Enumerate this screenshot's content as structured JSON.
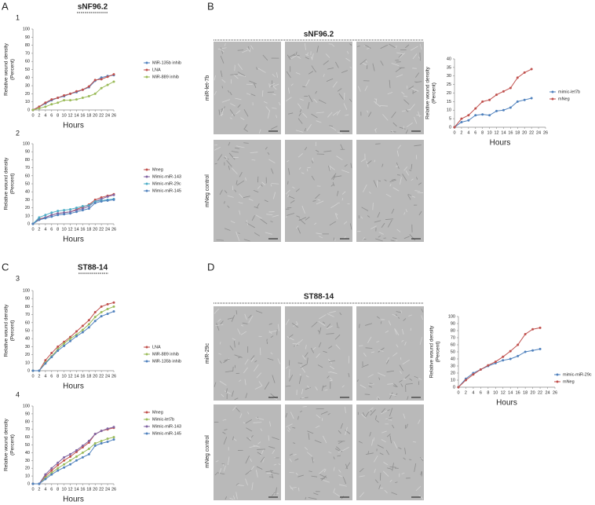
{
  "panels": [
    {
      "letter": "A",
      "title": "sNF96.2",
      "subpanels": [
        "1",
        "2"
      ]
    },
    {
      "letter": "B",
      "title": "sNF96.2",
      "rows": [
        "miR-let-7b",
        "mNeg control"
      ]
    },
    {
      "letter": "C",
      "title": "ST88-14",
      "subpanels": [
        "3",
        "4"
      ]
    },
    {
      "letter": "D",
      "title": "ST88-14",
      "rows": [
        "miR-29c",
        "mNeg control"
      ]
    }
  ],
  "chart_data": [
    {
      "type": "line",
      "ylabel": "Relative wound density",
      "ylabel_unit": "(Percent)",
      "xlabel": "Hours",
      "x": [
        0,
        2,
        4,
        6,
        8,
        10,
        12,
        14,
        16,
        18,
        20,
        22,
        24,
        26
      ],
      "xlim": [
        0,
        26
      ],
      "xticks": [
        0,
        2,
        4,
        6,
        8,
        10,
        12,
        14,
        16,
        18,
        20,
        22,
        24,
        26
      ],
      "ylim": [
        0,
        100
      ],
      "yticks": [
        0,
        10,
        20,
        30,
        40,
        50,
        60,
        70,
        80,
        90,
        100
      ],
      "series": [
        {
          "name": "MiR-135b inhib",
          "color": "#4f81bd",
          "values": [
            0,
            4,
            8,
            12,
            15,
            17,
            20,
            22,
            25,
            28,
            36,
            40,
            42,
            43
          ]
        },
        {
          "name": "LNA",
          "color": "#c0504d",
          "values": [
            0,
            4,
            9,
            13,
            15,
            18,
            20,
            23,
            25,
            29,
            37,
            38,
            41,
            44
          ]
        },
        {
          "name": "MiR-889 inhib",
          "color": "#9bbb59",
          "values": [
            0,
            2,
            4,
            7,
            9,
            12,
            12,
            13,
            15,
            17,
            20,
            27,
            31,
            35
          ]
        }
      ]
    },
    {
      "type": "line",
      "ylabel": "Relative wound density",
      "ylabel_unit": "(Percent)",
      "xlabel": "Hours",
      "x": [
        0,
        2,
        4,
        6,
        8,
        10,
        12,
        14,
        16,
        18,
        20,
        22,
        24,
        26
      ],
      "xlim": [
        0,
        26
      ],
      "xticks": [
        0,
        2,
        4,
        6,
        8,
        10,
        12,
        14,
        16,
        18,
        20,
        22,
        24,
        26
      ],
      "ylim": [
        0,
        100
      ],
      "yticks": [
        0,
        10,
        20,
        30,
        40,
        50,
        60,
        70,
        80,
        90,
        100
      ],
      "series": [
        {
          "name": "Mneg",
          "color": "#c0504d",
          "values": [
            0,
            6,
            8,
            11,
            13,
            14,
            15,
            18,
            21,
            24,
            30,
            33,
            35,
            37
          ]
        },
        {
          "name": "Mimic-miR-143",
          "color": "#8064a2",
          "values": [
            0,
            5,
            8,
            11,
            13,
            14,
            15,
            17,
            19,
            22,
            28,
            31,
            34,
            36
          ]
        },
        {
          "name": "Mimic-miR-29c",
          "color": "#4bacc6",
          "values": [
            0,
            8,
            11,
            14,
            16,
            17,
            18,
            20,
            22,
            23,
            28,
            29,
            30,
            31
          ]
        },
        {
          "name": "Mimic-miR-145",
          "color": "#4f81bd",
          "values": [
            0,
            5,
            7,
            9,
            11,
            12,
            13,
            15,
            17,
            19,
            26,
            28,
            29,
            30
          ]
        }
      ]
    },
    {
      "type": "line",
      "ylabel": "Relative wound density",
      "ylabel_unit": "(Percent)",
      "xlabel": "Hours",
      "x": [
        0,
        2,
        4,
        6,
        8,
        10,
        12,
        14,
        16,
        18,
        20,
        22
      ],
      "xlim": [
        0,
        26
      ],
      "xticks": [
        0,
        2,
        4,
        6,
        8,
        10,
        12,
        14,
        16,
        18,
        20,
        22,
        24,
        26
      ],
      "ylim": [
        0,
        40
      ],
      "yticks": [
        0,
        5,
        10,
        15,
        20,
        25,
        30,
        35,
        40
      ],
      "series": [
        {
          "name": "mimic-let7b",
          "color": "#4f81bd",
          "values": [
            0,
            3,
            4,
            7,
            7.5,
            7,
            9.5,
            10,
            11.5,
            15,
            16,
            17
          ]
        },
        {
          "name": "mNeg",
          "color": "#c0504d",
          "values": [
            0,
            5,
            7,
            11,
            15,
            16,
            19,
            21,
            23,
            29,
            32,
            34
          ]
        }
      ]
    },
    {
      "type": "line",
      "ylabel": "Relative wound density",
      "ylabel_unit": "(Percent)",
      "xlabel": "Hours",
      "x": [
        0,
        2,
        4,
        6,
        8,
        10,
        12,
        14,
        16,
        18,
        20,
        22,
        24,
        26
      ],
      "xlim": [
        0,
        26
      ],
      "xticks": [
        0,
        2,
        4,
        6,
        8,
        10,
        12,
        14,
        16,
        18,
        20,
        22,
        24,
        26
      ],
      "ylim": [
        0,
        100
      ],
      "yticks": [
        0,
        10,
        20,
        30,
        40,
        50,
        60,
        70,
        80,
        90,
        100
      ],
      "series": [
        {
          "name": "LNA",
          "color": "#c0504d",
          "values": [
            0,
            0,
            13,
            22,
            30,
            36,
            42,
            49,
            56,
            63,
            73,
            80,
            83,
            85
          ]
        },
        {
          "name": "MiR-889 inhib",
          "color": "#9bbb59",
          "values": [
            0,
            0,
            10,
            18,
            27,
            34,
            40,
            45,
            51,
            58,
            67,
            73,
            77,
            80
          ]
        },
        {
          "name": "MiR-135b inhib",
          "color": "#4f81bd",
          "values": [
            0,
            0,
            9,
            17,
            25,
            31,
            37,
            43,
            48,
            54,
            62,
            68,
            71,
            74
          ]
        }
      ]
    },
    {
      "type": "line",
      "ylabel": "Relative wound density",
      "ylabel_unit": "(Percent)",
      "xlabel": "Hours",
      "x": [
        0,
        2,
        4,
        6,
        8,
        10,
        12,
        14,
        16,
        18,
        20,
        22,
        24,
        26
      ],
      "xlim": [
        0,
        26
      ],
      "xticks": [
        0,
        2,
        4,
        6,
        8,
        10,
        12,
        14,
        16,
        18,
        20,
        22,
        24,
        26
      ],
      "ylim": [
        0,
        100
      ],
      "yticks": [
        0,
        10,
        20,
        30,
        40,
        50,
        60,
        70,
        80,
        90,
        100
      ],
      "series": [
        {
          "name": "Mneg",
          "color": "#c0504d",
          "values": [
            0,
            0,
            10,
            17,
            24,
            30,
            35,
            41,
            47,
            53,
            64,
            68,
            70,
            72
          ]
        },
        {
          "name": "Mimic-let7b",
          "color": "#9bbb59",
          "values": [
            0,
            0,
            8,
            14,
            20,
            25,
            30,
            35,
            40,
            45,
            52,
            55,
            58,
            60
          ]
        },
        {
          "name": "Mimic-miR-143",
          "color": "#8064a2",
          "values": [
            0,
            0,
            12,
            20,
            27,
            34,
            38,
            43,
            49,
            55,
            64,
            68,
            71,
            73
          ]
        },
        {
          "name": "Mimic-miR-145",
          "color": "#4f81bd",
          "values": [
            0,
            0,
            6,
            12,
            17,
            21,
            25,
            30,
            34,
            38,
            49,
            52,
            54,
            57
          ]
        }
      ]
    },
    {
      "type": "line",
      "ylabel": "Relative wound density",
      "ylabel_unit": "(Percent)",
      "xlabel": "Hours",
      "x": [
        0,
        2,
        4,
        6,
        8,
        10,
        12,
        14,
        16,
        18,
        20,
        22
      ],
      "xlim": [
        0,
        26
      ],
      "xticks": [
        0,
        2,
        4,
        6,
        8,
        10,
        12,
        14,
        16,
        18,
        20,
        22,
        24,
        26
      ],
      "ylim": [
        0,
        100
      ],
      "yticks": [
        0,
        10,
        20,
        30,
        40,
        50,
        60,
        70,
        80,
        90,
        100
      ],
      "series": [
        {
          "name": "mimic-miR-29c",
          "color": "#4f81bd",
          "values": [
            0,
            12,
            20,
            25,
            30,
            34,
            38,
            40,
            44,
            50,
            52,
            54
          ]
        },
        {
          "name": "mNeg",
          "color": "#c0504d",
          "values": [
            0,
            10,
            18,
            25,
            31,
            36,
            43,
            51,
            60,
            75,
            82,
            84
          ]
        }
      ]
    }
  ]
}
